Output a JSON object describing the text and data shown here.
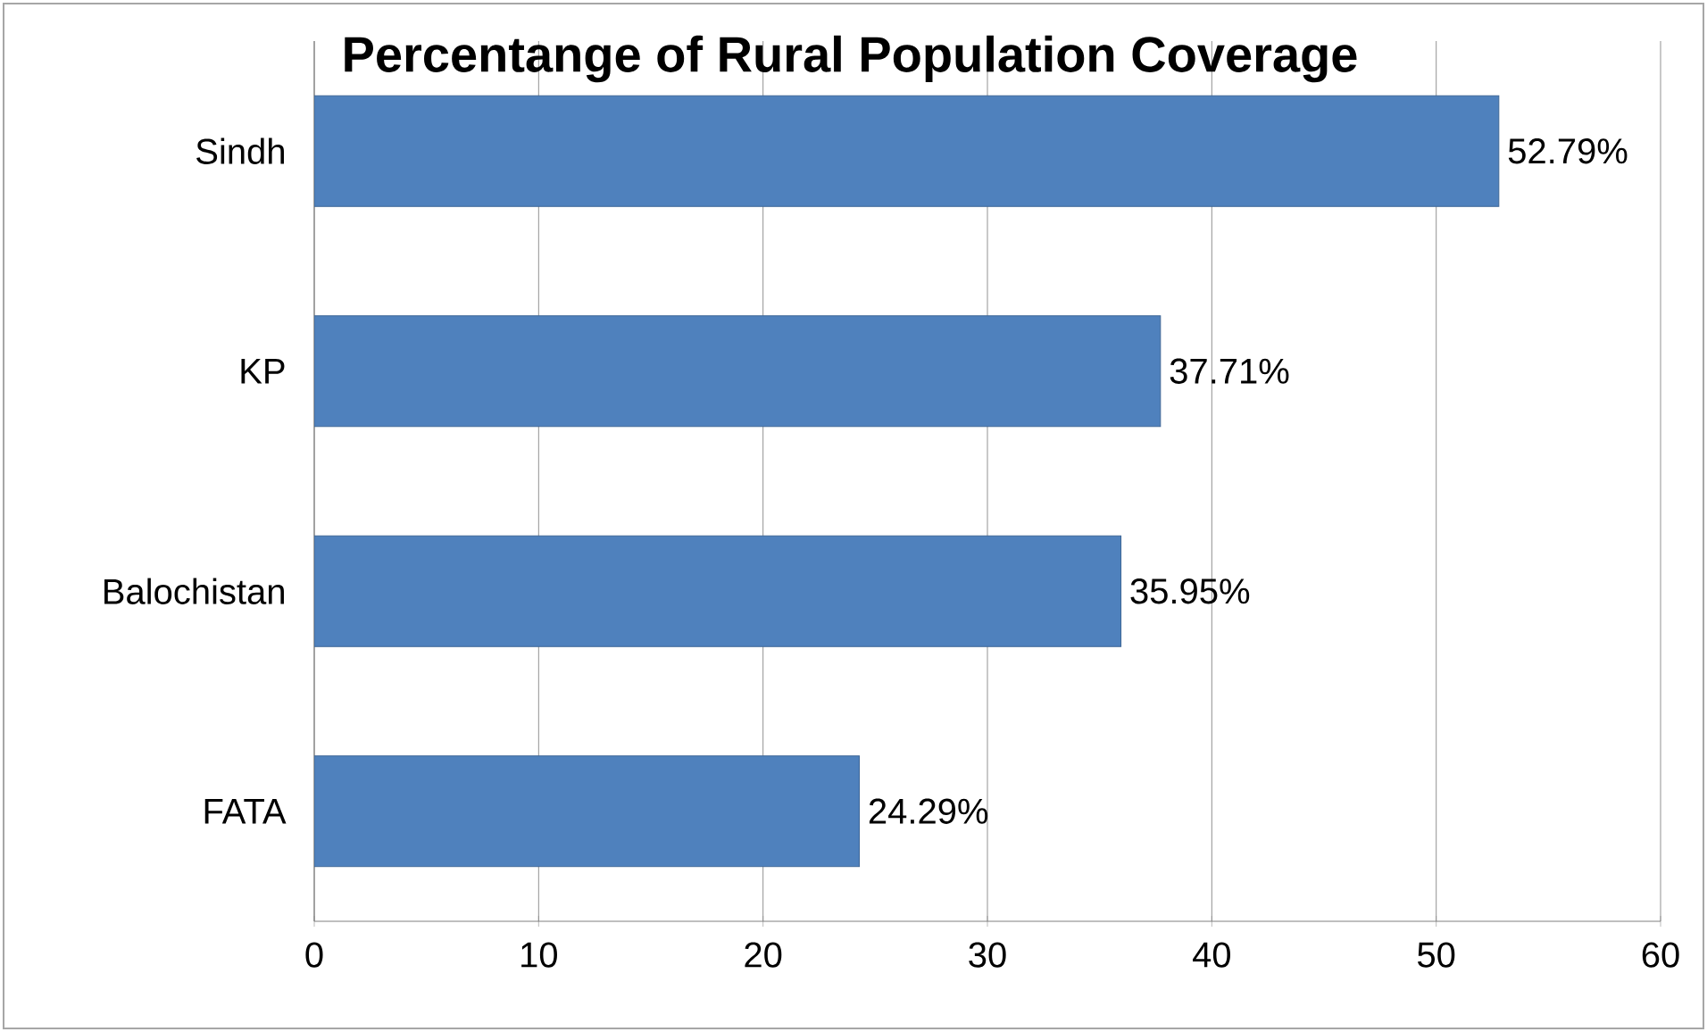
{
  "chart_data": {
    "type": "bar",
    "orientation": "horizontal",
    "title": "Percentange of Rural Population Coverage",
    "categories": [
      "Sindh",
      "KP",
      "Balochistan",
      "FATA"
    ],
    "values": [
      52.79,
      37.71,
      35.95,
      24.29
    ],
    "value_labels": [
      "52.79%",
      "37.71%",
      "35.95%",
      "24.29%"
    ],
    "color": "#4f81bd",
    "xlim": [
      0,
      60
    ],
    "xticks": [
      0,
      10,
      20,
      30,
      40,
      50,
      60
    ],
    "grid": "x"
  }
}
